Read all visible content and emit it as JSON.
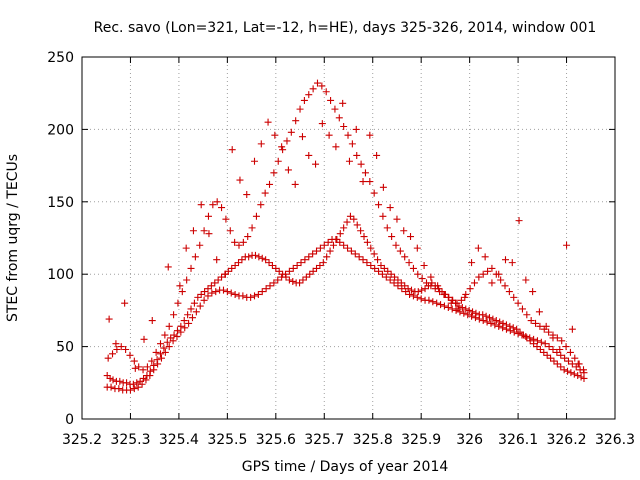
{
  "chart_data": {
    "type": "scatter",
    "title": "Rec. savo (Lon=321, Lat=-12, h=HE), days 325-326, 2014, window 001",
    "xlabel": "GPS time / Days of year 2014",
    "ylabel": "STEC from uqrg / TECUs",
    "xlim": [
      325.2,
      326.3
    ],
    "ylim": [
      0,
      250
    ],
    "xticks": [
      "325.2",
      "325.3",
      "325.4",
      "325.5",
      "325.6",
      "325.7",
      "325.8",
      "325.9",
      "326",
      "326.1",
      "326.2",
      "326.3"
    ],
    "yticks": [
      "0",
      "50",
      "100",
      "150",
      "200",
      "250"
    ],
    "grid": true,
    "marker": "+",
    "color": "#cc0000",
    "series": [
      {
        "x": [
          325.252,
          325.258,
          325.264,
          325.271,
          325.278,
          325.285,
          325.292,
          325.299,
          325.306,
          325.313,
          325.32,
          325.327,
          325.334,
          325.341,
          325.348,
          325.355,
          325.362,
          325.369,
          325.376,
          325.383,
          325.39,
          325.397,
          325.404,
          325.411,
          325.418,
          325.425,
          325.432,
          325.439,
          325.446,
          325.453,
          325.46,
          325.467,
          325.474,
          325.481,
          325.488,
          325.495,
          325.502,
          325.509,
          325.516,
          325.523,
          325.53,
          325.537,
          325.544,
          325.551,
          325.558,
          325.565,
          325.572,
          325.579,
          325.586,
          325.593,
          325.6,
          325.607,
          325.614,
          325.621,
          325.628,
          325.635,
          325.642,
          325.649,
          325.656,
          325.663,
          325.67,
          325.677,
          325.684,
          325.691,
          325.698,
          325.705,
          325.712,
          325.719,
          325.726,
          325.733,
          325.74,
          325.747,
          325.754,
          325.761,
          325.768,
          325.775,
          325.782,
          325.789,
          325.796,
          325.803,
          325.81,
          325.817,
          325.824,
          325.831,
          325.838,
          325.845,
          325.852,
          325.859,
          325.866,
          325.873,
          325.88,
          325.887,
          325.894,
          325.901,
          325.908,
          325.915,
          325.922,
          325.929,
          325.936,
          325.943,
          325.95,
          325.957,
          325.964,
          325.971,
          325.978,
          325.985,
          325.992,
          325.999,
          326.006,
          326.013,
          326.02,
          326.027,
          326.034,
          326.041,
          326.048,
          326.055,
          326.062,
          326.069,
          326.076,
          326.083,
          326.09,
          326.097,
          326.104,
          326.111,
          326.118,
          326.125,
          326.132,
          326.139,
          326.146,
          326.153,
          326.16,
          326.167,
          326.174,
          326.181,
          326.188,
          326.195,
          326.202,
          326.209,
          326.216,
          326.223,
          326.23,
          326.236
        ],
        "y": [
          30,
          28,
          27,
          26,
          26,
          25,
          25,
          24,
          24,
          25,
          26,
          28,
          30,
          33,
          37,
          41,
          45,
          49,
          53,
          56,
          58,
          61,
          64,
          68,
          72,
          76,
          80,
          84,
          86,
          88,
          90,
          92,
          94,
          96,
          98,
          100,
          102,
          104,
          106,
          108,
          110,
          112,
          112,
          113,
          113,
          112,
          111,
          110,
          108,
          106,
          104,
          102,
          100,
          98,
          96,
          95,
          94,
          94,
          96,
          98,
          100,
          102,
          104,
          106,
          108,
          112,
          116,
          120,
          124,
          128,
          132,
          136,
          140,
          138,
          134,
          130,
          126,
          122,
          118,
          114,
          110,
          106,
          104,
          102,
          100,
          98,
          96,
          94,
          92,
          90,
          89,
          88,
          88,
          89,
          90,
          92,
          94,
          92,
          90,
          88,
          86,
          84,
          82,
          80,
          78,
          77,
          76,
          75,
          74,
          73,
          72,
          72,
          71,
          70,
          69,
          68,
          67,
          66,
          65,
          64,
          63,
          62,
          60,
          58,
          56,
          54,
          52,
          50,
          48,
          46,
          44,
          42,
          40,
          38,
          36,
          34,
          33,
          32,
          31,
          30,
          29,
          28
        ]
      },
      {
        "x": [
          325.252,
          325.26,
          325.268,
          325.276,
          325.284,
          325.292,
          325.3,
          325.308,
          325.316,
          325.324,
          325.332,
          325.34,
          325.348,
          325.356,
          325.364,
          325.372,
          325.38,
          325.388,
          325.396,
          325.404,
          325.412,
          325.42,
          325.428,
          325.436,
          325.444,
          325.452,
          325.46,
          325.468,
          325.476,
          325.484,
          325.492,
          325.5,
          325.508,
          325.516,
          325.524,
          325.532,
          325.54,
          325.548,
          325.556,
          325.564,
          325.572,
          325.58,
          325.588,
          325.596,
          325.604,
          325.612,
          325.62,
          325.628,
          325.636,
          325.644,
          325.652,
          325.66,
          325.668,
          325.676,
          325.684,
          325.692,
          325.7,
          325.708,
          325.716,
          325.724,
          325.732,
          325.74,
          325.748,
          325.756,
          325.764,
          325.772,
          325.78,
          325.788,
          325.796,
          325.804,
          325.812,
          325.82,
          325.828,
          325.836,
          325.844,
          325.852,
          325.86,
          325.868,
          325.876,
          325.884,
          325.892,
          325.9,
          325.908,
          325.916,
          325.924,
          325.932,
          325.94,
          325.948,
          325.956,
          325.964,
          325.972,
          325.98,
          325.988,
          325.996,
          326.004,
          326.012,
          326.02,
          326.028,
          326.036,
          326.044,
          326.052,
          326.06,
          326.068,
          326.076,
          326.084,
          326.092,
          326.1,
          326.108,
          326.116,
          326.124,
          326.132,
          326.14,
          326.148,
          326.156,
          326.164,
          326.172,
          326.18,
          326.188,
          326.196,
          326.204,
          326.212,
          326.22,
          326.228,
          326.236
        ],
        "y": [
          22,
          22,
          21,
          21,
          20,
          20,
          20,
          21,
          22,
          24,
          27,
          30,
          34,
          38,
          42,
          46,
          50,
          54,
          57,
          60,
          63,
          66,
          70,
          74,
          78,
          82,
          85,
          87,
          88,
          89,
          89,
          88,
          87,
          86,
          85,
          85,
          84,
          84,
          85,
          86,
          88,
          90,
          92,
          94,
          96,
          98,
          100,
          102,
          104,
          106,
          108,
          110,
          112,
          114,
          116,
          118,
          120,
          122,
          124,
          124,
          122,
          120,
          118,
          116,
          114,
          112,
          110,
          108,
          106,
          104,
          102,
          100,
          98,
          96,
          94,
          92,
          90,
          88,
          86,
          85,
          84,
          83,
          82,
          82,
          81,
          80,
          79,
          78,
          77,
          76,
          75,
          74,
          73,
          72,
          71,
          70,
          69,
          68,
          67,
          66,
          65,
          64,
          63,
          62,
          61,
          60,
          59,
          58,
          57,
          56,
          55,
          54,
          53,
          52,
          50,
          48,
          46,
          44,
          42,
          40,
          38,
          36,
          34,
          32
        ]
      },
      {
        "x": [
          325.254,
          325.263,
          325.272,
          325.281,
          325.29,
          325.299,
          325.308,
          325.317,
          325.326,
          325.335,
          325.344,
          325.353,
          325.362,
          325.371,
          325.38,
          325.389,
          325.398,
          325.407,
          325.416,
          325.425,
          325.434,
          325.443,
          325.452,
          325.461,
          325.47,
          325.479,
          325.488,
          325.497,
          325.506,
          325.515,
          325.524,
          325.533,
          325.542,
          325.551,
          325.56,
          325.569,
          325.578,
          325.587,
          325.596,
          325.605,
          325.614,
          325.623,
          325.632,
          325.641,
          325.65,
          325.659,
          325.668,
          325.677,
          325.686,
          325.695,
          325.704,
          325.713,
          325.722,
          325.731,
          325.74,
          325.749,
          325.758,
          325.767,
          325.776,
          325.785,
          325.794,
          325.803,
          325.812,
          325.821,
          325.83,
          325.839,
          325.848,
          325.857,
          325.866,
          325.875,
          325.884,
          325.893,
          325.902,
          325.911,
          325.92,
          325.929,
          325.938,
          325.947,
          325.956,
          325.965,
          325.974,
          325.983,
          325.992,
          326.001,
          326.01,
          326.019,
          326.028,
          326.037,
          326.046,
          326.055,
          326.064,
          326.073,
          326.082,
          326.091,
          326.1,
          326.109,
          326.118,
          326.127,
          326.136,
          326.145,
          326.154,
          326.163,
          326.172,
          326.181,
          326.19,
          326.199,
          326.208,
          326.217,
          326.226,
          326.235
        ],
        "y": [
          42,
          45,
          48,
          50,
          48,
          44,
          40,
          36,
          34,
          36,
          40,
          46,
          52,
          58,
          64,
          72,
          80,
          88,
          96,
          104,
          112,
          120,
          130,
          140,
          148,
          150,
          146,
          138,
          130,
          122,
          120,
          122,
          126,
          132,
          140,
          148,
          156,
          162,
          170,
          178,
          186,
          192,
          198,
          206,
          214,
          220,
          224,
          228,
          232,
          230,
          226,
          220,
          214,
          208,
          202,
          196,
          190,
          182,
          176,
          170,
          164,
          156,
          148,
          140,
          132,
          126,
          120,
          116,
          112,
          108,
          104,
          100,
          97,
          94,
          92,
          90,
          88,
          86,
          84,
          82,
          80,
          82,
          86,
          90,
          94,
          98,
          100,
          102,
          104,
          100,
          96,
          92,
          88,
          84,
          80,
          76,
          72,
          68,
          66,
          64,
          62,
          60,
          58,
          56,
          54,
          50,
          46,
          42,
          38,
          34
        ]
      },
      {
        "x": [
          325.256,
          325.27,
          325.288,
          325.31,
          325.328,
          325.345,
          325.378,
          325.402,
          325.415,
          325.43,
          325.446,
          325.462,
          325.478,
          325.496,
          325.51,
          325.526,
          325.54,
          325.556,
          325.57,
          325.584,
          325.598,
          325.612,
          325.626,
          325.64,
          325.655,
          325.668,
          325.682,
          325.696,
          325.71,
          325.724,
          325.738,
          325.752,
          325.766,
          325.78,
          325.794,
          325.808,
          325.822,
          325.836,
          325.85,
          325.864,
          325.878,
          325.892,
          325.906,
          325.92,
          325.934,
          325.948,
          325.962,
          325.976,
          325.99,
          326.004,
          326.018,
          326.032,
          326.046,
          326.06,
          326.074,
          326.088,
          326.102,
          326.116,
          326.13,
          326.144,
          326.158,
          326.172,
          326.186,
          326.2,
          326.212,
          326.224
        ],
        "y": [
          69,
          52,
          80,
          35,
          55,
          68,
          105,
          92,
          118,
          130,
          148,
          128,
          110,
          100,
          186,
          165,
          155,
          178,
          190,
          205,
          196,
          188,
          172,
          162,
          195,
          182,
          176,
          204,
          196,
          188,
          218,
          178,
          200,
          164,
          196,
          182,
          160,
          146,
          138,
          130,
          126,
          118,
          106,
          98,
          92,
          86,
          80,
          76,
          84,
          108,
          118,
          112,
          94,
          100,
          110,
          108,
          137,
          96,
          88,
          74,
          64,
          56,
          48,
          120,
          62,
          38
        ]
      }
    ]
  }
}
